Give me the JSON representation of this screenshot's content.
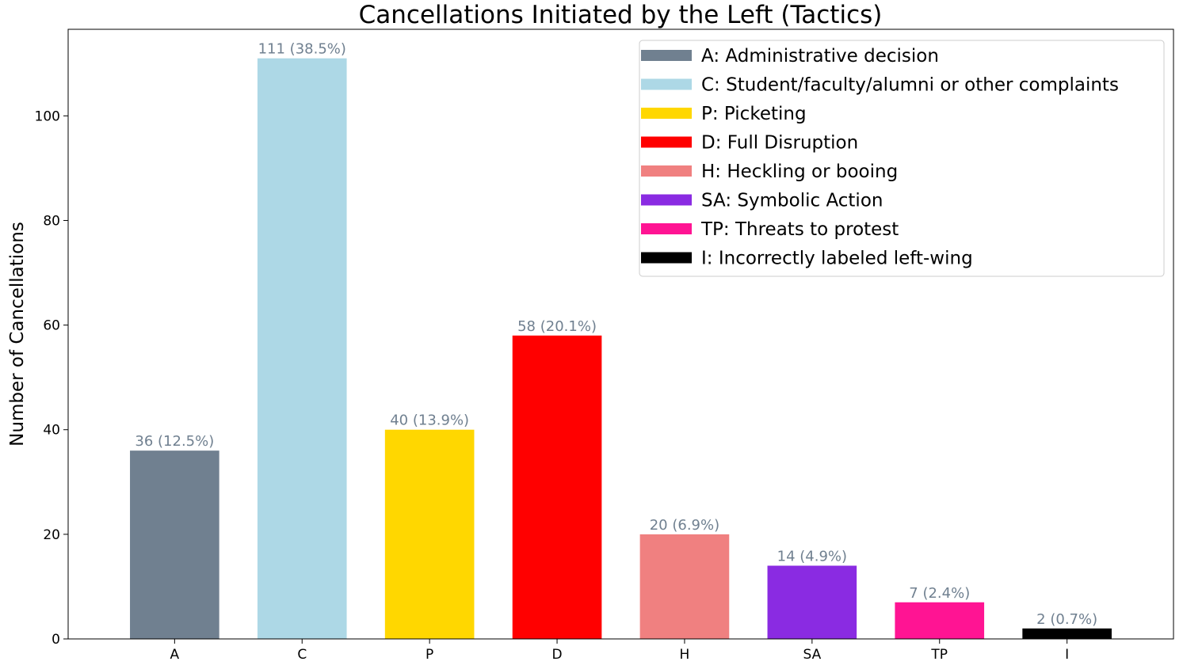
{
  "chart_data": {
    "type": "bar",
    "title": "Cancellations Initiated by the Left (Tactics)",
    "xlabel": "",
    "ylabel": "Number of Cancellations",
    "ylim": [
      0,
      116.55
    ],
    "yticks": [
      0,
      20,
      40,
      60,
      80,
      100
    ],
    "categories": [
      "A",
      "C",
      "P",
      "D",
      "H",
      "SA",
      "TP",
      "I"
    ],
    "values": [
      36,
      111,
      40,
      58,
      20,
      14,
      7,
      2
    ],
    "bar_labels": [
      "36 (12.5%)",
      "111 (38.5%)",
      "40 (13.9%)",
      "58 (20.1%)",
      "20 (6.9%)",
      "14 (4.9%)",
      "7 (2.4%)",
      "2 (0.7%)"
    ],
    "colors": [
      "#708090",
      "#add8e6",
      "#ffd700",
      "#ff0000",
      "#f08080",
      "#8a2be2",
      "#ff1493",
      "#000000"
    ],
    "legend": [
      "A: Administrative decision",
      "C: Student/faculty/alumni or other complaints",
      "P: Picketing",
      "D: Full Disruption",
      "H: Heckling or booing",
      "SA: Symbolic Action",
      "TP: Threats to protest",
      "I: Incorrectly labeled left-wing"
    ],
    "legend_position": "top-right",
    "bar_label_color": "#708090",
    "grid": false
  }
}
